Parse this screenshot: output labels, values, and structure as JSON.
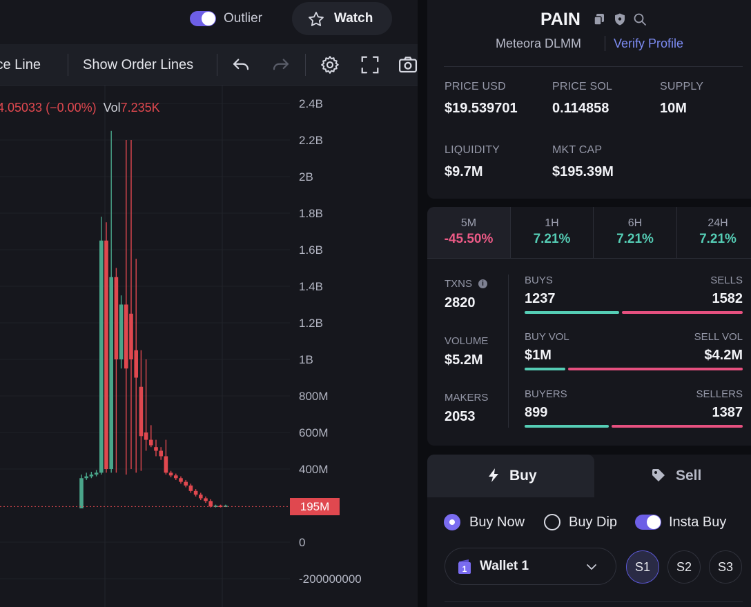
{
  "top_bar": {
    "outlier_label": "Outlier",
    "outlier_on": true,
    "watch_label": "Watch"
  },
  "toolbar": {
    "price_line_label": "ice Line",
    "order_lines_label": "Show Order Lines"
  },
  "chart": {
    "legend_change": "4.05033 (−0.00%)",
    "legend_vol_label": "Vol",
    "legend_vol_value": "7.235K",
    "y_ticks": [
      "2.4B",
      "2.2B",
      "2B",
      "1.8B",
      "1.6B",
      "1.4B",
      "1.2B",
      "1B",
      "800M",
      "600M",
      "400M",
      "195M",
      "0",
      "-200000000"
    ],
    "current_price_tag": "195M",
    "colors": {
      "up": "#4aa58a",
      "down": "#e0484f",
      "price_line": "#e0484f"
    }
  },
  "chart_data": {
    "type": "candlestick",
    "ylim": [
      -200000000,
      2400000000
    ],
    "current_value": 195000000,
    "candles": [
      {
        "o": 185000000,
        "c": 350000000,
        "h": 370000000,
        "l": 185000000,
        "dir": "up"
      },
      {
        "o": 350000000,
        "c": 360000000,
        "h": 380000000,
        "l": 340000000,
        "dir": "up"
      },
      {
        "o": 360000000,
        "c": 370000000,
        "h": 385000000,
        "l": 350000000,
        "dir": "up"
      },
      {
        "o": 370000000,
        "c": 380000000,
        "h": 395000000,
        "l": 360000000,
        "dir": "up"
      },
      {
        "o": 380000000,
        "c": 1650000000,
        "h": 1780000000,
        "l": 370000000,
        "dir": "up"
      },
      {
        "o": 1650000000,
        "c": 400000000,
        "h": 1750000000,
        "l": 380000000,
        "dir": "down"
      },
      {
        "o": 400000000,
        "c": 1450000000,
        "h": 2250000000,
        "l": 380000000,
        "dir": "up"
      },
      {
        "o": 1450000000,
        "c": 1000000000,
        "h": 1500000000,
        "l": 380000000,
        "dir": "down"
      },
      {
        "o": 1000000000,
        "c": 1300000000,
        "h": 1350000000,
        "l": 950000000,
        "dir": "up"
      },
      {
        "o": 1300000000,
        "c": 950000000,
        "h": 2200000000,
        "l": 370000000,
        "dir": "down"
      },
      {
        "o": 1250000000,
        "c": 1000000000,
        "h": 2200000000,
        "l": 400000000,
        "dir": "down"
      },
      {
        "o": 1050000000,
        "c": 900000000,
        "h": 1550000000,
        "l": 380000000,
        "dir": "down"
      },
      {
        "o": 850000000,
        "c": 580000000,
        "h": 1050000000,
        "l": 390000000,
        "dir": "down"
      },
      {
        "o": 600000000,
        "c": 560000000,
        "h": 1000000000,
        "l": 500000000,
        "dir": "down"
      },
      {
        "o": 560000000,
        "c": 530000000,
        "h": 640000000,
        "l": 520000000,
        "dir": "down"
      },
      {
        "o": 520000000,
        "c": 500000000,
        "h": 560000000,
        "l": 470000000,
        "dir": "down"
      },
      {
        "o": 500000000,
        "c": 470000000,
        "h": 520000000,
        "l": 450000000,
        "dir": "down"
      },
      {
        "o": 470000000,
        "c": 380000000,
        "h": 560000000,
        "l": 370000000,
        "dir": "down"
      },
      {
        "o": 380000000,
        "c": 365000000,
        "h": 390000000,
        "l": 355000000,
        "dir": "down"
      },
      {
        "o": 365000000,
        "c": 350000000,
        "h": 375000000,
        "l": 340000000,
        "dir": "down"
      },
      {
        "o": 350000000,
        "c": 330000000,
        "h": 360000000,
        "l": 320000000,
        "dir": "down"
      },
      {
        "o": 330000000,
        "c": 310000000,
        "h": 340000000,
        "l": 300000000,
        "dir": "down"
      },
      {
        "o": 310000000,
        "c": 280000000,
        "h": 320000000,
        "l": 270000000,
        "dir": "down"
      },
      {
        "o": 280000000,
        "c": 260000000,
        "h": 290000000,
        "l": 250000000,
        "dir": "down"
      },
      {
        "o": 260000000,
        "c": 240000000,
        "h": 270000000,
        "l": 230000000,
        "dir": "down"
      },
      {
        "o": 240000000,
        "c": 225000000,
        "h": 250000000,
        "l": 215000000,
        "dir": "down"
      },
      {
        "o": 225000000,
        "c": 195000000,
        "h": 235000000,
        "l": 190000000,
        "dir": "down"
      },
      {
        "o": 195000000,
        "c": 200000000,
        "h": 205000000,
        "l": 190000000,
        "dir": "up"
      },
      {
        "o": 200000000,
        "c": 195000000,
        "h": 205000000,
        "l": 190000000,
        "dir": "down"
      },
      {
        "o": 195000000,
        "c": 200000000,
        "h": 205000000,
        "l": 192000000,
        "dir": "up"
      }
    ]
  },
  "token": {
    "name": "PAIN",
    "dex": "Meteora DLMM",
    "verify_label": "Verify Profile"
  },
  "stats": [
    {
      "label": "PRICE USD",
      "value": "$19.539701"
    },
    {
      "label": "PRICE SOL",
      "value": "0.114858"
    },
    {
      "label": "SUPPLY",
      "value": "10M"
    },
    {
      "label": "LIQUIDITY",
      "value": "$9.7M"
    },
    {
      "label": "MKT CAP",
      "value": "$195.39M"
    }
  ],
  "timeframes": [
    {
      "label": "5M",
      "value": "-45.50%",
      "color": "#ec5a86"
    },
    {
      "label": "1H",
      "value": "7.21%",
      "color": "#55cdb5"
    },
    {
      "label": "6H",
      "value": "7.21%",
      "color": "#55cdb5"
    },
    {
      "label": "24H",
      "value": "7.21%",
      "color": "#55cdb5"
    }
  ],
  "txn_stats": {
    "txns_label": "TXNS",
    "txns_value": "2820",
    "volume_label": "VOLUME",
    "volume_value": "$5.2M",
    "makers_label": "MAKERS",
    "makers_value": "2053"
  },
  "ratios": [
    {
      "left_label": "BUYS",
      "left_value": "1237",
      "right_label": "SELLS",
      "right_value": "1582",
      "buy_share": 0.439
    },
    {
      "left_label": "BUY VOL",
      "left_value": "$1M",
      "right_label": "SELL VOL",
      "right_value": "$4.2M",
      "buy_share": 0.192
    },
    {
      "left_label": "BUYERS",
      "left_value": "899",
      "right_label": "SELLERS",
      "right_value": "1387",
      "buy_share": 0.393
    }
  ],
  "trade": {
    "buy_tab": "Buy",
    "sell_tab": "Sell",
    "buy_now_label": "Buy Now",
    "buy_dip_label": "Buy Dip",
    "insta_buy_label": "Insta Buy",
    "wallet_label": "Wallet 1",
    "wallet_number": "1",
    "slots": [
      "S1",
      "S2",
      "S3"
    ]
  }
}
